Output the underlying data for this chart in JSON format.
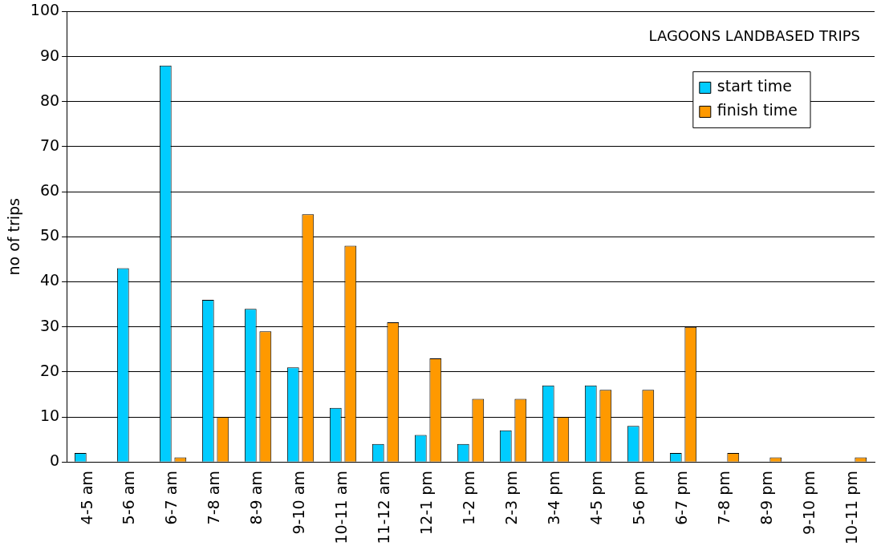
{
  "chart_data": {
    "type": "bar",
    "title": "LAGOONS LANDBASED TRIPS",
    "ylabel": "no of trips",
    "categories": [
      "4-5 am",
      "5-6 am",
      "6-7 am",
      "7-8 am",
      "8-9 am",
      "9-10 am",
      "10-11 am",
      "11-12 am",
      "12-1 pm",
      "1-2 pm",
      "2-3 pm",
      "3-4 pm",
      "4-5 pm",
      "5-6 pm",
      "6-7 pm",
      "7-8 pm",
      "8-9 pm",
      "9-10 pm",
      "10-11 pm"
    ],
    "series": [
      {
        "name": "start time",
        "color": "#00ccff",
        "values": [
          2,
          43,
          88,
          36,
          34,
          21,
          12,
          4,
          6,
          4,
          7,
          17,
          17,
          8,
          2,
          0,
          0,
          0,
          0
        ]
      },
      {
        "name": "finish time",
        "color": "#ff9900",
        "values": [
          0,
          0,
          1,
          10,
          29,
          55,
          48,
          31,
          23,
          14,
          14,
          10,
          16,
          16,
          30,
          2,
          1,
          0,
          1
        ]
      }
    ],
    "ylim": [
      0,
      100
    ],
    "yticks": [
      0,
      10,
      20,
      30,
      40,
      50,
      60,
      70,
      80,
      90,
      100
    ],
    "grid": "y",
    "legend": "top right"
  }
}
